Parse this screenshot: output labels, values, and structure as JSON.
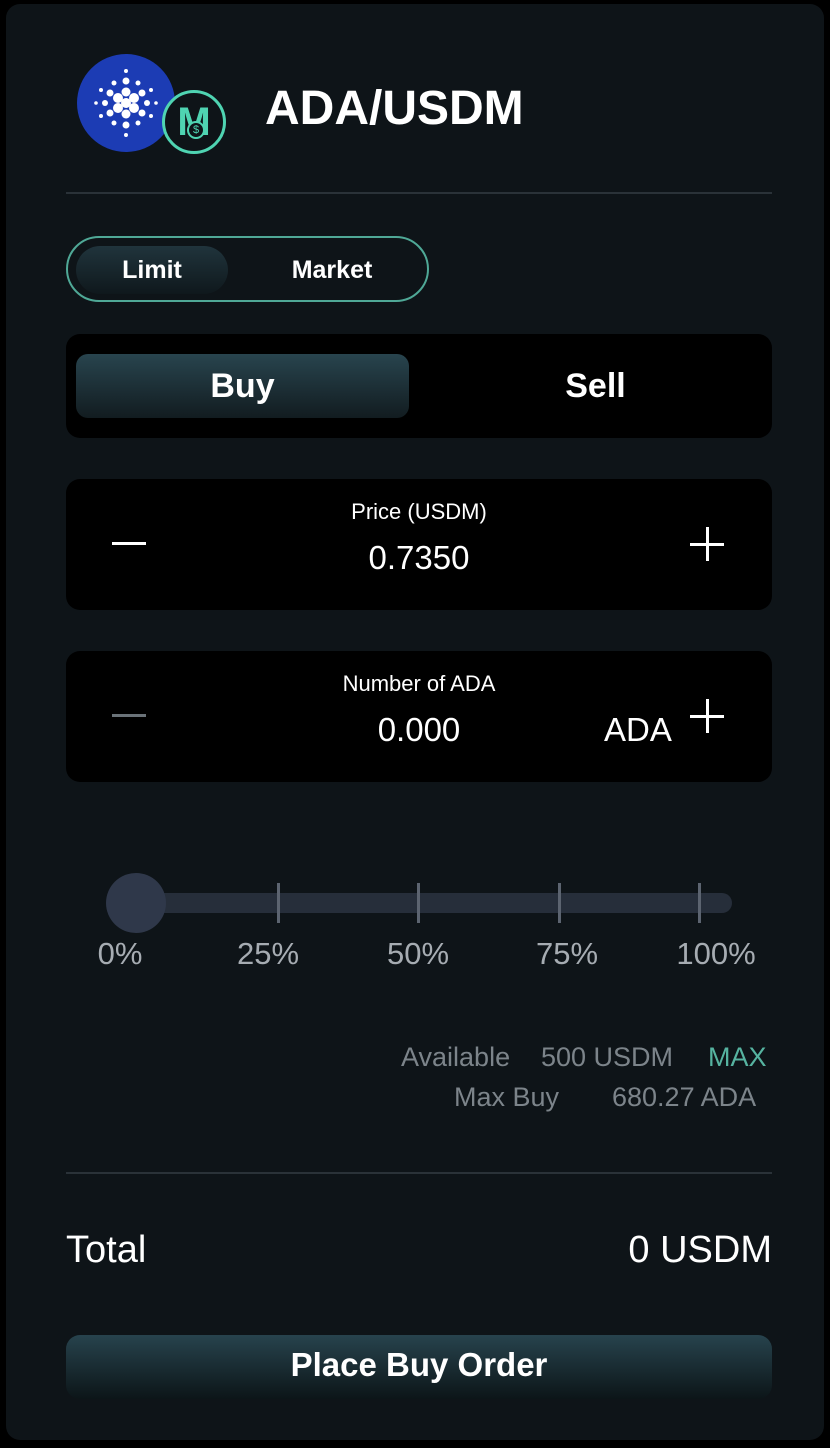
{
  "header": {
    "pair_title": "ADA/USDM",
    "base_icon": "cardano-logo-icon",
    "quote_icon": "usdm-logo-icon",
    "quote_icon_glyph": "M"
  },
  "order_type": {
    "options": [
      "Limit",
      "Market"
    ],
    "selected": "Limit"
  },
  "side": {
    "buy_label": "Buy",
    "sell_label": "Sell",
    "selected": "Buy"
  },
  "price": {
    "label": "Price (USDM)",
    "value": "0.7350"
  },
  "amount": {
    "label": "Number of ADA",
    "value": "0.000",
    "unit": "ADA"
  },
  "slider": {
    "value_percent": 0,
    "labels": [
      "0%",
      "25%",
      "50%",
      "75%",
      "100%"
    ]
  },
  "balance": {
    "available_label": "Available",
    "available_value": "500 USDM",
    "max_label": "MAX",
    "max_buy_label": "Max Buy",
    "max_buy_value": "680.27 ADA"
  },
  "total": {
    "label": "Total",
    "value": "0 USDM"
  },
  "submit": {
    "label": "Place Buy Order"
  },
  "colors": {
    "background": "#0e1418",
    "accent": "#56b3a0",
    "ada_blue": "#1c3cb4"
  }
}
